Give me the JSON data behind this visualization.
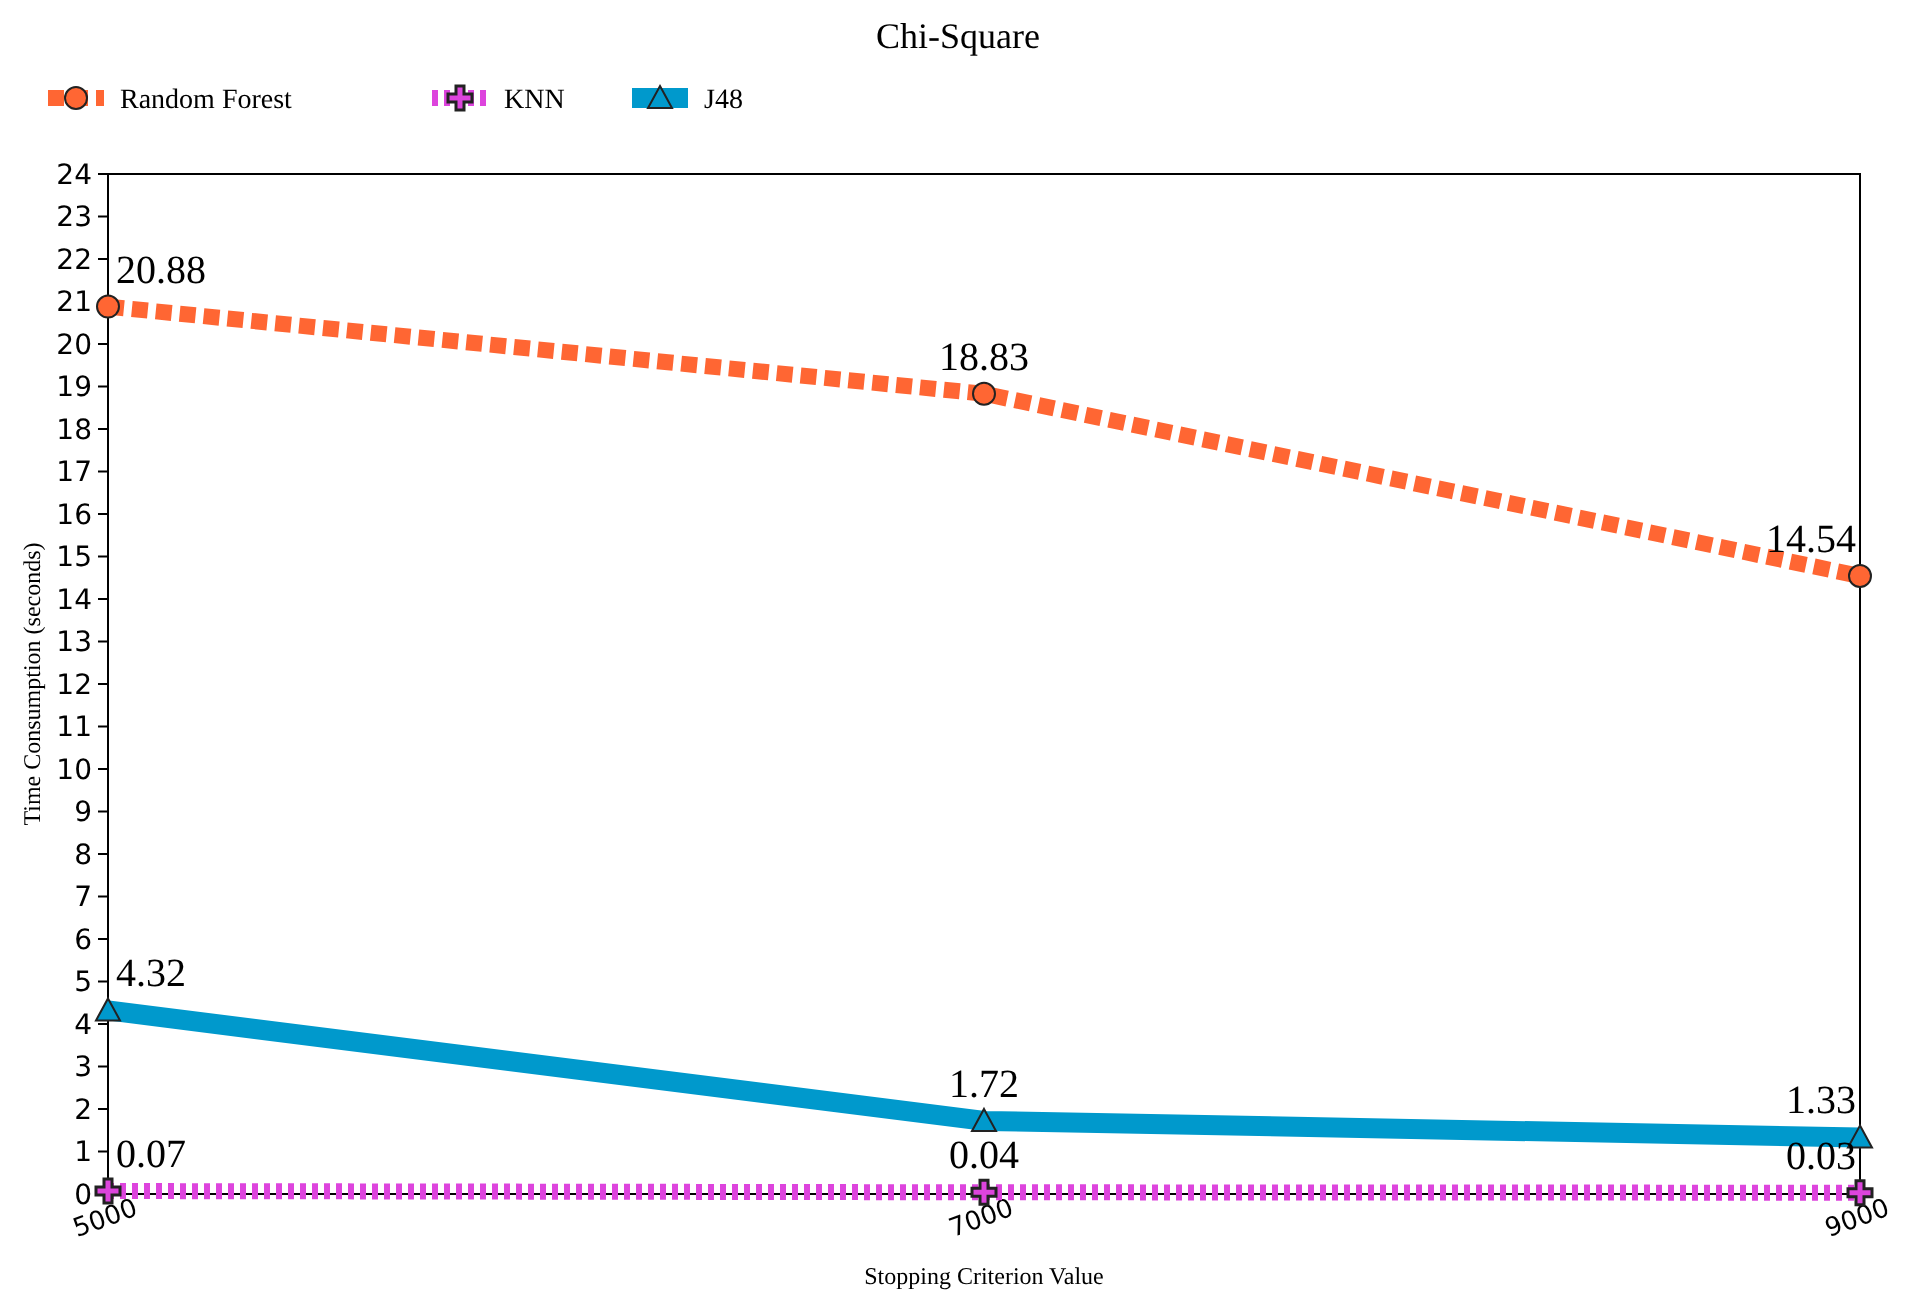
{
  "chart_data": {
    "type": "line",
    "title": "Chi-Square",
    "xlabel": "Stopping Criterion Value",
    "ylabel": "Time Consumption (seconds)",
    "x": [
      5000,
      7000,
      9000
    ],
    "xlim": [
      5000,
      9000
    ],
    "xticks": [
      5000,
      7000,
      9000
    ],
    "ylim": [
      0,
      24
    ],
    "yticks": [
      0,
      1,
      2,
      3,
      4,
      5,
      6,
      7,
      8,
      9,
      10,
      11,
      12,
      13,
      14,
      15,
      16,
      17,
      18,
      19,
      20,
      21,
      22,
      23,
      24
    ],
    "grid": false,
    "legend": "top left",
    "data_labels": true,
    "series": [
      {
        "name": "Random Forest",
        "color": "#ff6633",
        "values": [
          20.88,
          18.83,
          14.54
        ],
        "marker": "circle",
        "line_style": "dashed"
      },
      {
        "name": "KNN",
        "color": "#dd44dd",
        "values": [
          0.07,
          0.04,
          0.03
        ],
        "marker": "cross",
        "line_style": "dotted"
      },
      {
        "name": "J48",
        "color": "#0099cc",
        "values": [
          4.32,
          1.72,
          1.33
        ],
        "marker": "triangle",
        "line_style": "solid"
      }
    ]
  }
}
